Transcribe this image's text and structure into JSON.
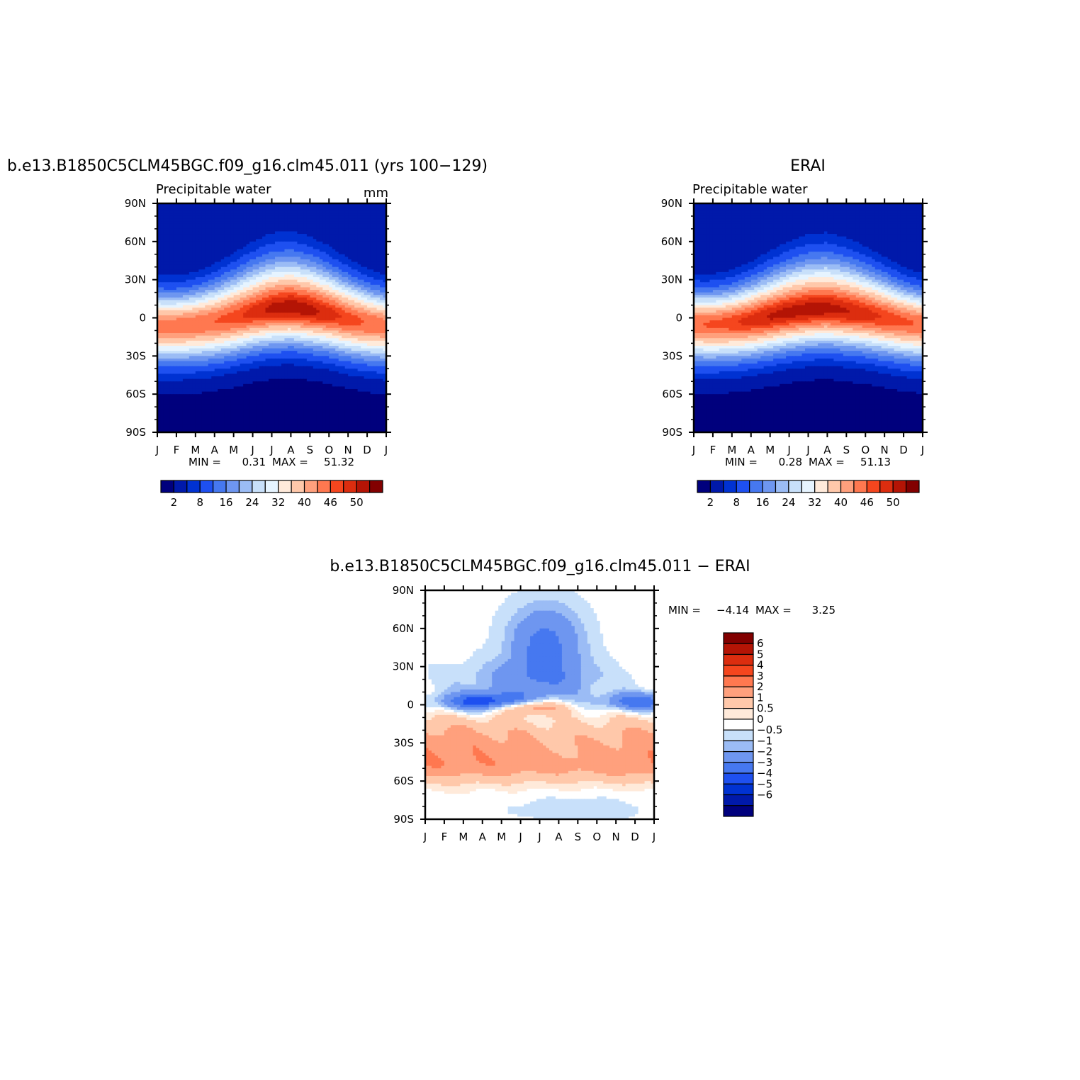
{
  "chart_data": [
    {
      "type": "heatmap",
      "panel": "model",
      "title": "b.e13.B1850C5CLM45BGC.f09_g16.clm45.011 (yrs 100−129)",
      "subtitle": "Precipitable water",
      "units": "mm",
      "x_tick_labels": [
        "J",
        "F",
        "M",
        "A",
        "M",
        "J",
        "J",
        "A",
        "S",
        "O",
        "N",
        "D",
        "J"
      ],
      "y_tick_labels": [
        "90N",
        "60N",
        "30N",
        "0",
        "30S",
        "60S",
        "90S"
      ],
      "ylim": [
        -90,
        90
      ],
      "min_label": "MIN =",
      "min_value": "0.31",
      "max_label": "MAX =",
      "max_value": "51.32",
      "levels": [
        2,
        5,
        8,
        12,
        16,
        20,
        24,
        28,
        32,
        36,
        40,
        43,
        46,
        48,
        50
      ],
      "colorbar_labels": [
        "2",
        "8",
        "16",
        "24",
        "32",
        "40",
        "46",
        "50"
      ],
      "colors": [
        "#00007d",
        "#0019aa",
        "#0032d2",
        "#1e50f0",
        "#4678f0",
        "#6e96f0",
        "#9bbcf5",
        "#c8e0fa",
        "#e6f4ff",
        "#ffeada",
        "#ffc8aa",
        "#ffa07d",
        "#ff7850",
        "#f5461e",
        "#dc2d0f",
        "#b41405",
        "#820000"
      ],
      "equator_peak_max": [
        44.5,
        44.8,
        45.4,
        46.0,
        47.2,
        48.8,
        50.6,
        51.3,
        50.8,
        49.0,
        47.3,
        45.8,
        44.5
      ],
      "equator_peak_lat": [
        -6,
        -6,
        -5,
        -3,
        0,
        4,
        7,
        8,
        6,
        3,
        -1,
        -4,
        -6
      ]
    },
    {
      "type": "heatmap",
      "panel": "obs",
      "title": "ERAI",
      "subtitle": "Precipitable water",
      "x_tick_labels": [
        "J",
        "F",
        "M",
        "A",
        "M",
        "J",
        "J",
        "A",
        "S",
        "O",
        "N",
        "D",
        "J"
      ],
      "y_tick_labels": [
        "90N",
        "60N",
        "30N",
        "0",
        "30S",
        "60S",
        "90S"
      ],
      "ylim": [
        -90,
        90
      ],
      "min_label": "MIN =",
      "min_value": "0.28",
      "max_label": "MAX =",
      "max_value": "51.13",
      "levels": [
        2,
        5,
        8,
        12,
        16,
        20,
        24,
        28,
        32,
        36,
        40,
        43,
        46,
        48,
        50
      ],
      "colorbar_labels": [
        "2",
        "8",
        "16",
        "24",
        "32",
        "40",
        "46",
        "50"
      ],
      "colors": [
        "#00007d",
        "#0019aa",
        "#0032d2",
        "#1e50f0",
        "#4678f0",
        "#6e96f0",
        "#9bbcf5",
        "#c8e0fa",
        "#e6f4ff",
        "#ffeada",
        "#ffc8aa",
        "#ffa07d",
        "#ff7850",
        "#f5461e",
        "#dc2d0f",
        "#b41405",
        "#820000"
      ],
      "equator_peak_max": [
        45.5,
        46.5,
        47.5,
        49.0,
        50.3,
        50.8,
        51.1,
        50.9,
        50.2,
        49.0,
        47.8,
        46.5,
        45.5
      ],
      "equator_peak_lat": [
        -5,
        -5,
        -4,
        -2,
        1,
        4,
        6,
        7,
        5,
        3,
        0,
        -3,
        -5
      ]
    },
    {
      "type": "heatmap",
      "panel": "difference",
      "title": "b.e13.B1850C5CLM45BGC.f09_g16.clm45.011 − ERAI",
      "x_tick_labels": [
        "J",
        "F",
        "M",
        "A",
        "M",
        "J",
        "J",
        "A",
        "S",
        "O",
        "N",
        "D",
        "J"
      ],
      "y_tick_labels": [
        "90N",
        "60N",
        "30N",
        "0",
        "30S",
        "60S",
        "90S"
      ],
      "ylim": [
        -90,
        90
      ],
      "min_label": "MIN =",
      "min_value": "−4.14",
      "max_label": "MAX =",
      "max_value": "3.25",
      "levels": [
        -6,
        -5,
        -4,
        -3,
        -2,
        -1,
        -0.5,
        0,
        0.5,
        1,
        2,
        3,
        4,
        5,
        6
      ],
      "colorbar_labels": [
        "6",
        "5",
        "4",
        "3",
        "2",
        "1",
        "0.5",
        "0",
        "−0.5",
        "−1",
        "−2",
        "−3",
        "−4",
        "−5",
        "−6"
      ],
      "colors": [
        "#00007d",
        "#0019aa",
        "#0032d2",
        "#1e50f0",
        "#4678f0",
        "#6e96f0",
        "#9bbcf5",
        "#c8e0fa",
        "#ffffff",
        "#ffeada",
        "#ffc8aa",
        "#ffa07d",
        "#ff7850",
        "#f5461e",
        "#dc2d0f",
        "#b41405",
        "#820000"
      ]
    }
  ]
}
